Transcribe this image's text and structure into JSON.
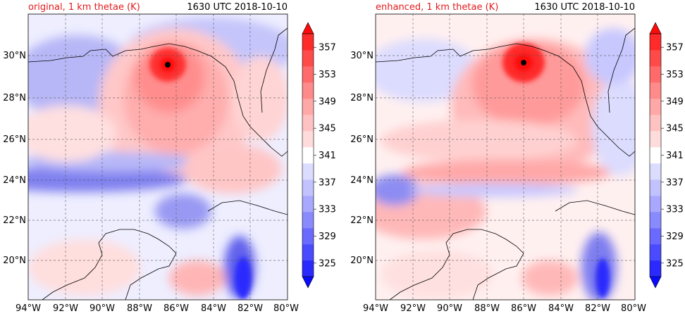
{
  "chart_data": [
    {
      "type": "heatmap",
      "title_left": "original, 1 km thetae (K)",
      "title_right": "1630 UTC 2018-10-10",
      "xticks": [
        "94°W",
        "92°W",
        "90°W",
        "88°W",
        "86°W",
        "84°W",
        "82°W",
        "80°W"
      ],
      "yticks": [
        "20°N",
        "22°N",
        "24°N",
        "26°N",
        "28°N",
        "30°N"
      ],
      "lon_range": [
        -94,
        -80
      ],
      "lat_range": [
        18.2,
        32
      ],
      "hurricane_center": {
        "lon": -86.4,
        "lat": 29.6
      },
      "colorbar_ticks": [
        "325",
        "329",
        "333",
        "337",
        "341",
        "345",
        "349",
        "353",
        "357"
      ],
      "colorbar_range": [
        323,
        359
      ],
      "grid": true
    },
    {
      "type": "heatmap",
      "title_left": "enhanced, 1 km thetae (K)",
      "title_right": "1630 UTC 2018-10-10",
      "xticks": [
        "94°W",
        "92°W",
        "90°W",
        "88°W",
        "86°W",
        "84°W",
        "82°W",
        "80°W"
      ],
      "yticks": [
        "20°N",
        "22°N",
        "24°N",
        "26°N",
        "28°N",
        "30°N"
      ],
      "lon_range": [
        -94,
        -80
      ],
      "lat_range": [
        18.2,
        32
      ],
      "hurricane_center": {
        "lon": -85.9,
        "lat": 29.7
      },
      "colorbar_ticks": [
        "325",
        "329",
        "333",
        "337",
        "341",
        "345",
        "349",
        "353",
        "357"
      ],
      "colorbar_range": [
        323,
        359
      ],
      "grid": true
    }
  ],
  "colors": {
    "title_left": "#e41a1c",
    "title_right": "#000000",
    "colorbar": [
      "#0a0aff",
      "#2a2aff",
      "#4a4aff",
      "#6a6aff",
      "#8a8aff",
      "#a8a8ff",
      "#c2c2ff",
      "#dcdcff",
      "#ffffff",
      "#ffdcdc",
      "#ffc2c2",
      "#ffa8a8",
      "#ff8a8a",
      "#ff6a6a",
      "#ff4a4a",
      "#ff2a2a",
      "#ff0a0a"
    ]
  }
}
